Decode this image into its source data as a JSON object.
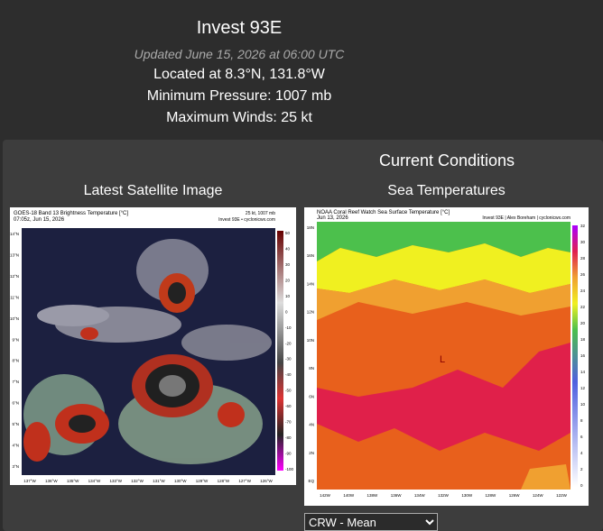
{
  "header": {
    "title": "Invest 93E",
    "updated": "Updated June 15, 2026 at 06:00 UTC",
    "location": "Located at 8.3°N, 131.8°W",
    "pressure": "Minimum Pressure: 1007 mb",
    "winds": "Maximum Winds: 25 kt"
  },
  "conditions": {
    "title": "Current Conditions",
    "satellite": {
      "heading": "Latest Satellite Image",
      "image_title": "GOES-18 Band 13 Brightness Temperature [°C]",
      "image_time": "07:05z, Jun 15, 2026",
      "image_stats": "25 kt, 1007 mb",
      "image_credit": "Invest 93E • cyclonicwx.com",
      "y_labels": [
        "14°N",
        "13°N",
        "12°N",
        "11°N",
        "10°N",
        "9°N",
        "8°N",
        "7°N",
        "6°N",
        "5°N",
        "4°N",
        "3°N"
      ],
      "x_labels": [
        "137°W",
        "136°W",
        "135°W",
        "134°W",
        "133°W",
        "132°W",
        "131°W",
        "130°W",
        "129°W",
        "128°W",
        "127°W",
        "126°W"
      ],
      "colorbar_labels": [
        "50",
        "40",
        "30",
        "20",
        "10",
        "0",
        "-10",
        "-20",
        "-30",
        "-40",
        "-50",
        "-60",
        "-70",
        "-80",
        "-90",
        "-100"
      ]
    },
    "sst": {
      "heading": "Sea Temperatures",
      "image_title": "NOAA Coral Reef Watch Sea Surface Temperature [°C]",
      "image_time": "Jun 13, 2026",
      "image_credit": "Invest 93E | Alex Boreham | cyclonicwx.com",
      "center_marker": "L",
      "y_labels": [
        "18N",
        "16N",
        "14N",
        "12N",
        "10N",
        "8N",
        "6N",
        "4N",
        "2N",
        "EQ"
      ],
      "x_labels": [
        "142W",
        "140W",
        "138W",
        "136W",
        "134W",
        "132W",
        "130W",
        "128W",
        "126W",
        "124W",
        "122W"
      ],
      "colorbar_labels": [
        "32",
        "30",
        "28",
        "26",
        "24",
        "22",
        "20",
        "18",
        "16",
        "14",
        "12",
        "10",
        "8",
        "6",
        "4",
        "2",
        "0"
      ],
      "dropdown": "CRW - Mean"
    }
  }
}
